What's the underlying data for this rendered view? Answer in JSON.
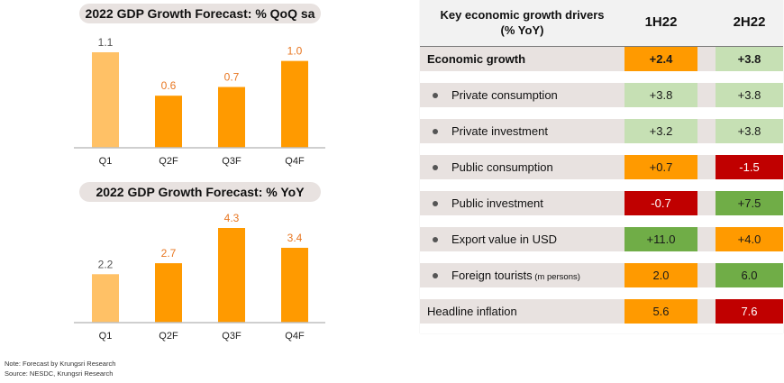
{
  "left_panel": {
    "note": "Note: Forecast by Krungsri Research",
    "source": "Source: NESDC, Krungsri Research"
  },
  "colors": {
    "actual_bar": "#ffc166",
    "forecast_bar": "#ff9a00",
    "actual_label": "#555555",
    "forecast_label": "#e87722",
    "orange_cell": "#ff9a00",
    "light_green_cell": "#c6e0b4",
    "green_cell": "#70ad47",
    "red_cell": "#c00000",
    "axis": "#bfbfbf"
  },
  "chart_data": [
    {
      "type": "bar",
      "title": "2022 GDP Growth Forecast: % QoQ sa",
      "categories": [
        "Q1",
        "Q2F",
        "Q3F",
        "Q4F"
      ],
      "values": [
        1.1,
        0.6,
        0.7,
        1.0
      ],
      "labels": [
        "1.1",
        "0.6",
        "0.7",
        "1.0"
      ],
      "forecast": [
        false,
        true,
        true,
        true
      ],
      "xlabel": "",
      "ylabel": "",
      "ylim": [
        0,
        1.1
      ],
      "grid": false
    },
    {
      "type": "bar",
      "title": "2022 GDP Growth Forecast: % YoY",
      "categories": [
        "Q1",
        "Q2F",
        "Q3F",
        "Q4F"
      ],
      "values": [
        2.2,
        2.7,
        4.3,
        3.4
      ],
      "labels": [
        "2.2",
        "2.7",
        "4.3",
        "3.4"
      ],
      "forecast": [
        false,
        true,
        true,
        true
      ],
      "xlabel": "",
      "ylabel": "",
      "ylim": [
        0,
        4.3
      ],
      "grid": false
    }
  ],
  "table": {
    "header": {
      "label_line1": "Key economic growth drivers",
      "label_line2": "(% YoY)",
      "col1": "1H22",
      "col2": "2H22"
    },
    "rows": [
      {
        "label": "Economic growth",
        "note": "",
        "bullet": false,
        "bold": true,
        "v1": "+2.4",
        "c1": "orange",
        "v2": "+3.8",
        "c2": "light_green"
      },
      {
        "label": "Private consumption",
        "note": "",
        "bullet": true,
        "bold": false,
        "v1": "+3.8",
        "c1": "light_green",
        "v2": "+3.8",
        "c2": "light_green"
      },
      {
        "label": "Private investment",
        "note": "",
        "bullet": true,
        "bold": false,
        "v1": "+3.2",
        "c1": "light_green",
        "v2": "+3.8",
        "c2": "light_green"
      },
      {
        "label": "Public consumption",
        "note": "",
        "bullet": true,
        "bold": false,
        "v1": "+0.7",
        "c1": "orange",
        "v2": "-1.5",
        "c2": "red"
      },
      {
        "label": "Public investment",
        "note": "",
        "bullet": true,
        "bold": false,
        "v1": "-0.7",
        "c1": "red",
        "v2": "+7.5",
        "c2": "green"
      },
      {
        "label": "Export value in USD",
        "note": "",
        "bullet": true,
        "bold": false,
        "v1": "+11.0",
        "c1": "green",
        "v2": "+4.0",
        "c2": "orange"
      },
      {
        "label": "Foreign tourists",
        "note": "(m persons)",
        "bullet": true,
        "bold": false,
        "v1": "2.0",
        "c1": "orange",
        "v2": "6.0",
        "c2": "green"
      },
      {
        "label": "Headline inflation",
        "note": "",
        "bullet": false,
        "bold": false,
        "v1": "5.6",
        "c1": "orange",
        "v2": "7.6",
        "c2": "red"
      }
    ]
  }
}
